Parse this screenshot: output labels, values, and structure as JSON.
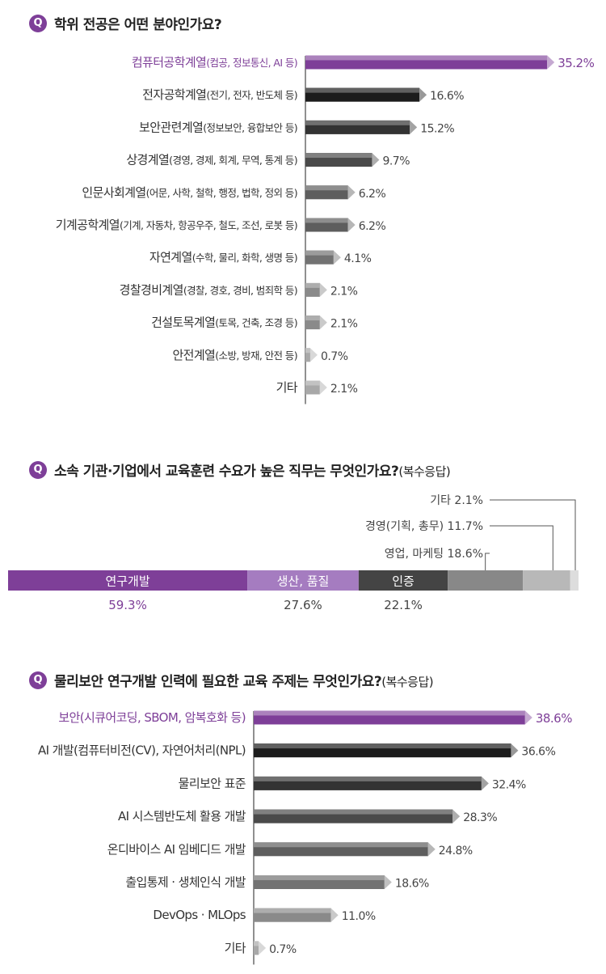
{
  "chart_data": [
    {
      "type": "bar",
      "orientation": "horizontal",
      "badge": "Q",
      "title": "학위 전공은 어떤 분야인가요?",
      "categories": [
        {
          "main": "컴퓨터공학계열",
          "detail": "(컴공, 정보통신, AI 등)"
        },
        {
          "main": "전자공학계열",
          "detail": "(전기, 전자, 반도체 등)"
        },
        {
          "main": "보안관련계열",
          "detail": "(정보보안, 융합보안 등)"
        },
        {
          "main": "상경계열",
          "detail": "(경영, 경제, 회계, 무역, 통계 등)"
        },
        {
          "main": "인문사회계열",
          "detail": "(어문, 사학, 철학, 행정, 법학, 정외 등)"
        },
        {
          "main": "기계공학계열",
          "detail": "(기계, 자동차, 항공우주, 철도, 조선, 로봇 등)"
        },
        {
          "main": "자연계열",
          "detail": "(수학, 물리, 화학, 생명 등)"
        },
        {
          "main": "경찰경비계열",
          "detail": "(경찰, 경호, 경비, 범죄학 등)"
        },
        {
          "main": "건설토목계열",
          "detail": "(토목, 건축, 조경 등)"
        },
        {
          "main": "안전계열",
          "detail": "(소방, 방재, 안전 등)"
        },
        {
          "main": "기타",
          "detail": ""
        }
      ],
      "values": [
        35.2,
        16.6,
        15.2,
        9.7,
        6.2,
        6.2,
        4.1,
        2.1,
        2.1,
        0.7,
        2.1
      ],
      "value_labels": [
        "35.2%",
        "16.6%",
        "15.2%",
        "9.7%",
        "6.2%",
        "6.2%",
        "4.1%",
        "2.1%",
        "2.1%",
        "0.7%",
        "2.1%"
      ],
      "highlight_index": 0,
      "colors": [
        "#7e3f98",
        "#1c1c1c",
        "#333333",
        "#4a4a4a",
        "#5e5e5e",
        "#5e5e5e",
        "#727272",
        "#8a8a8a",
        "#8a8a8a",
        "#a8a8a8",
        "#a8a8a8"
      ]
    },
    {
      "type": "bar",
      "orientation": "stacked-100",
      "badge": "Q",
      "title": "소속 기관·기업에서 교육훈련 수요가 높은 직무는 무엇인가요?",
      "title_suffix": "(복수응답)",
      "segments": [
        {
          "name": "연구개발",
          "value": 59.3,
          "value_label": "59.3%",
          "color": "#7e3f98"
        },
        {
          "name": "생산, 품질",
          "value": 27.6,
          "value_label": "27.6%",
          "color": "#a57cc0"
        },
        {
          "name": "인증",
          "value": 22.1,
          "value_label": "22.1%",
          "color": "#444444"
        },
        {
          "name": "영업, 마케팅",
          "value": 18.6,
          "value_label": "18.6%",
          "color": "#888888"
        },
        {
          "name": "경영(기획, 총무)",
          "value": 11.7,
          "value_label": "11.7%",
          "color": "#b8b8b8"
        },
        {
          "name": "기타",
          "value": 2.1,
          "value_label": "2.1%",
          "color": "#dddddd"
        }
      ]
    },
    {
      "type": "bar",
      "orientation": "horizontal",
      "badge": "Q",
      "title": "물리보안 연구개발 인력에 필요한 교육 주제는 무엇인가요?",
      "title_suffix": "(복수응답)",
      "categories": [
        {
          "main": "보안(시큐어코딩, SBOM, 암복호화 등)",
          "detail": ""
        },
        {
          "main": "AI 개발(컴퓨터비전(CV), 자연어처리(NPL)",
          "detail": ""
        },
        {
          "main": "물리보안 표준",
          "detail": ""
        },
        {
          "main": "AI 시스템반도체 활용 개발",
          "detail": ""
        },
        {
          "main": "온디바이스 AI 임베디드 개발",
          "detail": ""
        },
        {
          "main": "출입통제 · 생체인식 개발",
          "detail": ""
        },
        {
          "main": "DevOps · MLOps",
          "detail": ""
        },
        {
          "main": "기타",
          "detail": ""
        }
      ],
      "values": [
        38.6,
        36.6,
        32.4,
        28.3,
        24.8,
        18.6,
        11.0,
        0.7
      ],
      "value_labels": [
        "38.6%",
        "36.6%",
        "32.4%",
        "28.3%",
        "24.8%",
        "18.6%",
        "11.0%",
        "0.7%"
      ],
      "highlight_index": 0,
      "colors": [
        "#7e3f98",
        "#1c1c1c",
        "#333333",
        "#4a4a4a",
        "#5e5e5e",
        "#727272",
        "#8a8a8a",
        "#a8a8a8"
      ]
    }
  ]
}
